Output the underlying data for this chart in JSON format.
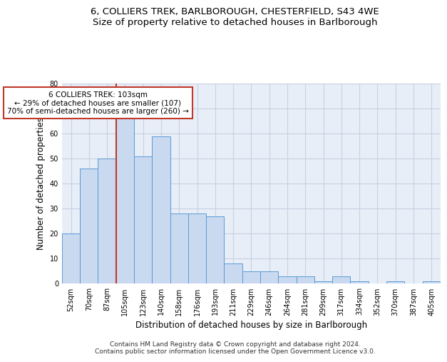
{
  "title_line1": "6, COLLIERS TREK, BARLBOROUGH, CHESTERFIELD, S43 4WE",
  "title_line2": "Size of property relative to detached houses in Barlborough",
  "xlabel": "Distribution of detached houses by size in Barlborough",
  "ylabel": "Number of detached properties",
  "bar_labels": [
    "52sqm",
    "70sqm",
    "87sqm",
    "105sqm",
    "123sqm",
    "140sqm",
    "158sqm",
    "176sqm",
    "193sqm",
    "211sqm",
    "229sqm",
    "246sqm",
    "264sqm",
    "281sqm",
    "299sqm",
    "317sqm",
    "334sqm",
    "352sqm",
    "370sqm",
    "387sqm",
    "405sqm"
  ],
  "bar_values": [
    20,
    46,
    50,
    66,
    51,
    59,
    28,
    28,
    27,
    8,
    5,
    5,
    3,
    3,
    1,
    3,
    1,
    0,
    1,
    0,
    1
  ],
  "bar_color": "#c9d9f0",
  "bar_edge_color": "#5b9bd5",
  "grid_color": "#c8d0e0",
  "background_color": "#e8eef8",
  "vline_x_index": 3,
  "vline_color": "#c0392b",
  "annotation_text": "6 COLLIERS TREK: 103sqm\n← 29% of detached houses are smaller (107)\n70% of semi-detached houses are larger (260) →",
  "annotation_box_color": "#c0392b",
  "ylim": [
    0,
    80
  ],
  "yticks": [
    0,
    10,
    20,
    30,
    40,
    50,
    60,
    70,
    80
  ],
  "footer_text": "Contains HM Land Registry data © Crown copyright and database right 2024.\nContains public sector information licensed under the Open Government Licence v3.0.",
  "title_fontsize": 9.5,
  "subtitle_fontsize": 9.5,
  "axis_label_fontsize": 8.5,
  "tick_fontsize": 7,
  "annotation_fontsize": 7.5,
  "footer_fontsize": 6.5
}
